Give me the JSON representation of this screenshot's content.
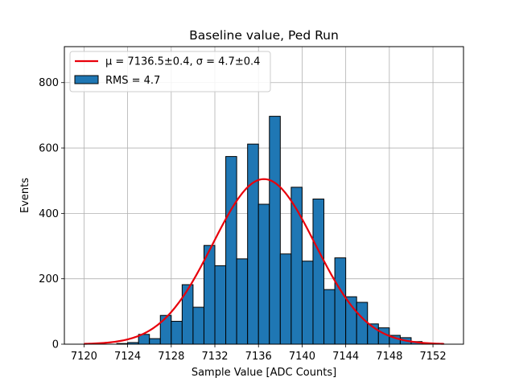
{
  "chart_data": {
    "type": "bar",
    "title": "Baseline value, Ped Run",
    "xlabel": "Sample Value [ADC Counts]",
    "ylabel": "Events",
    "xlim": [
      7118.2,
      7154.8
    ],
    "ylim": [
      0,
      910
    ],
    "xticks": [
      7120,
      7124,
      7128,
      7132,
      7136,
      7140,
      7144,
      7148,
      7152
    ],
    "yticks": [
      0,
      200,
      400,
      600,
      800
    ],
    "grid": true,
    "legend_position": "top-left",
    "histogram": {
      "name": "RMS = 4.7",
      "color": "#1f77b4",
      "edgecolor": "#000000",
      "bin_edges": [
        7120,
        7121,
        7122,
        7123,
        7124,
        7125,
        7126,
        7127,
        7128,
        7129,
        7130,
        7131,
        7132,
        7133,
        7134,
        7135,
        7136,
        7137,
        7138,
        7139,
        7140,
        7141,
        7142,
        7143,
        7144,
        7145,
        7146,
        7147,
        7148,
        7149,
        7150,
        7151,
        7152,
        7153
      ],
      "counts": [
        0,
        0,
        0,
        2,
        5,
        30,
        17,
        88,
        70,
        182,
        113,
        302,
        240,
        574,
        261,
        612,
        428,
        697,
        276,
        480,
        254,
        444,
        167,
        264,
        145,
        128,
        62,
        50,
        27,
        20,
        8,
        3,
        1
      ]
    },
    "fit": {
      "name": "μ = 7136.5±0.4, σ = 4.7±0.4",
      "color": "#e8000b",
      "mu": 7136.5,
      "sigma": 4.7,
      "amplitude": 505,
      "x_range": [
        7120,
        7153
      ]
    },
    "legend": [
      {
        "label": "μ = 7136.5±0.4, σ = 4.7±0.4",
        "kind": "line",
        "color": "#e8000b"
      },
      {
        "label": "RMS = 4.7",
        "kind": "patch",
        "color": "#1f77b4"
      }
    ]
  }
}
